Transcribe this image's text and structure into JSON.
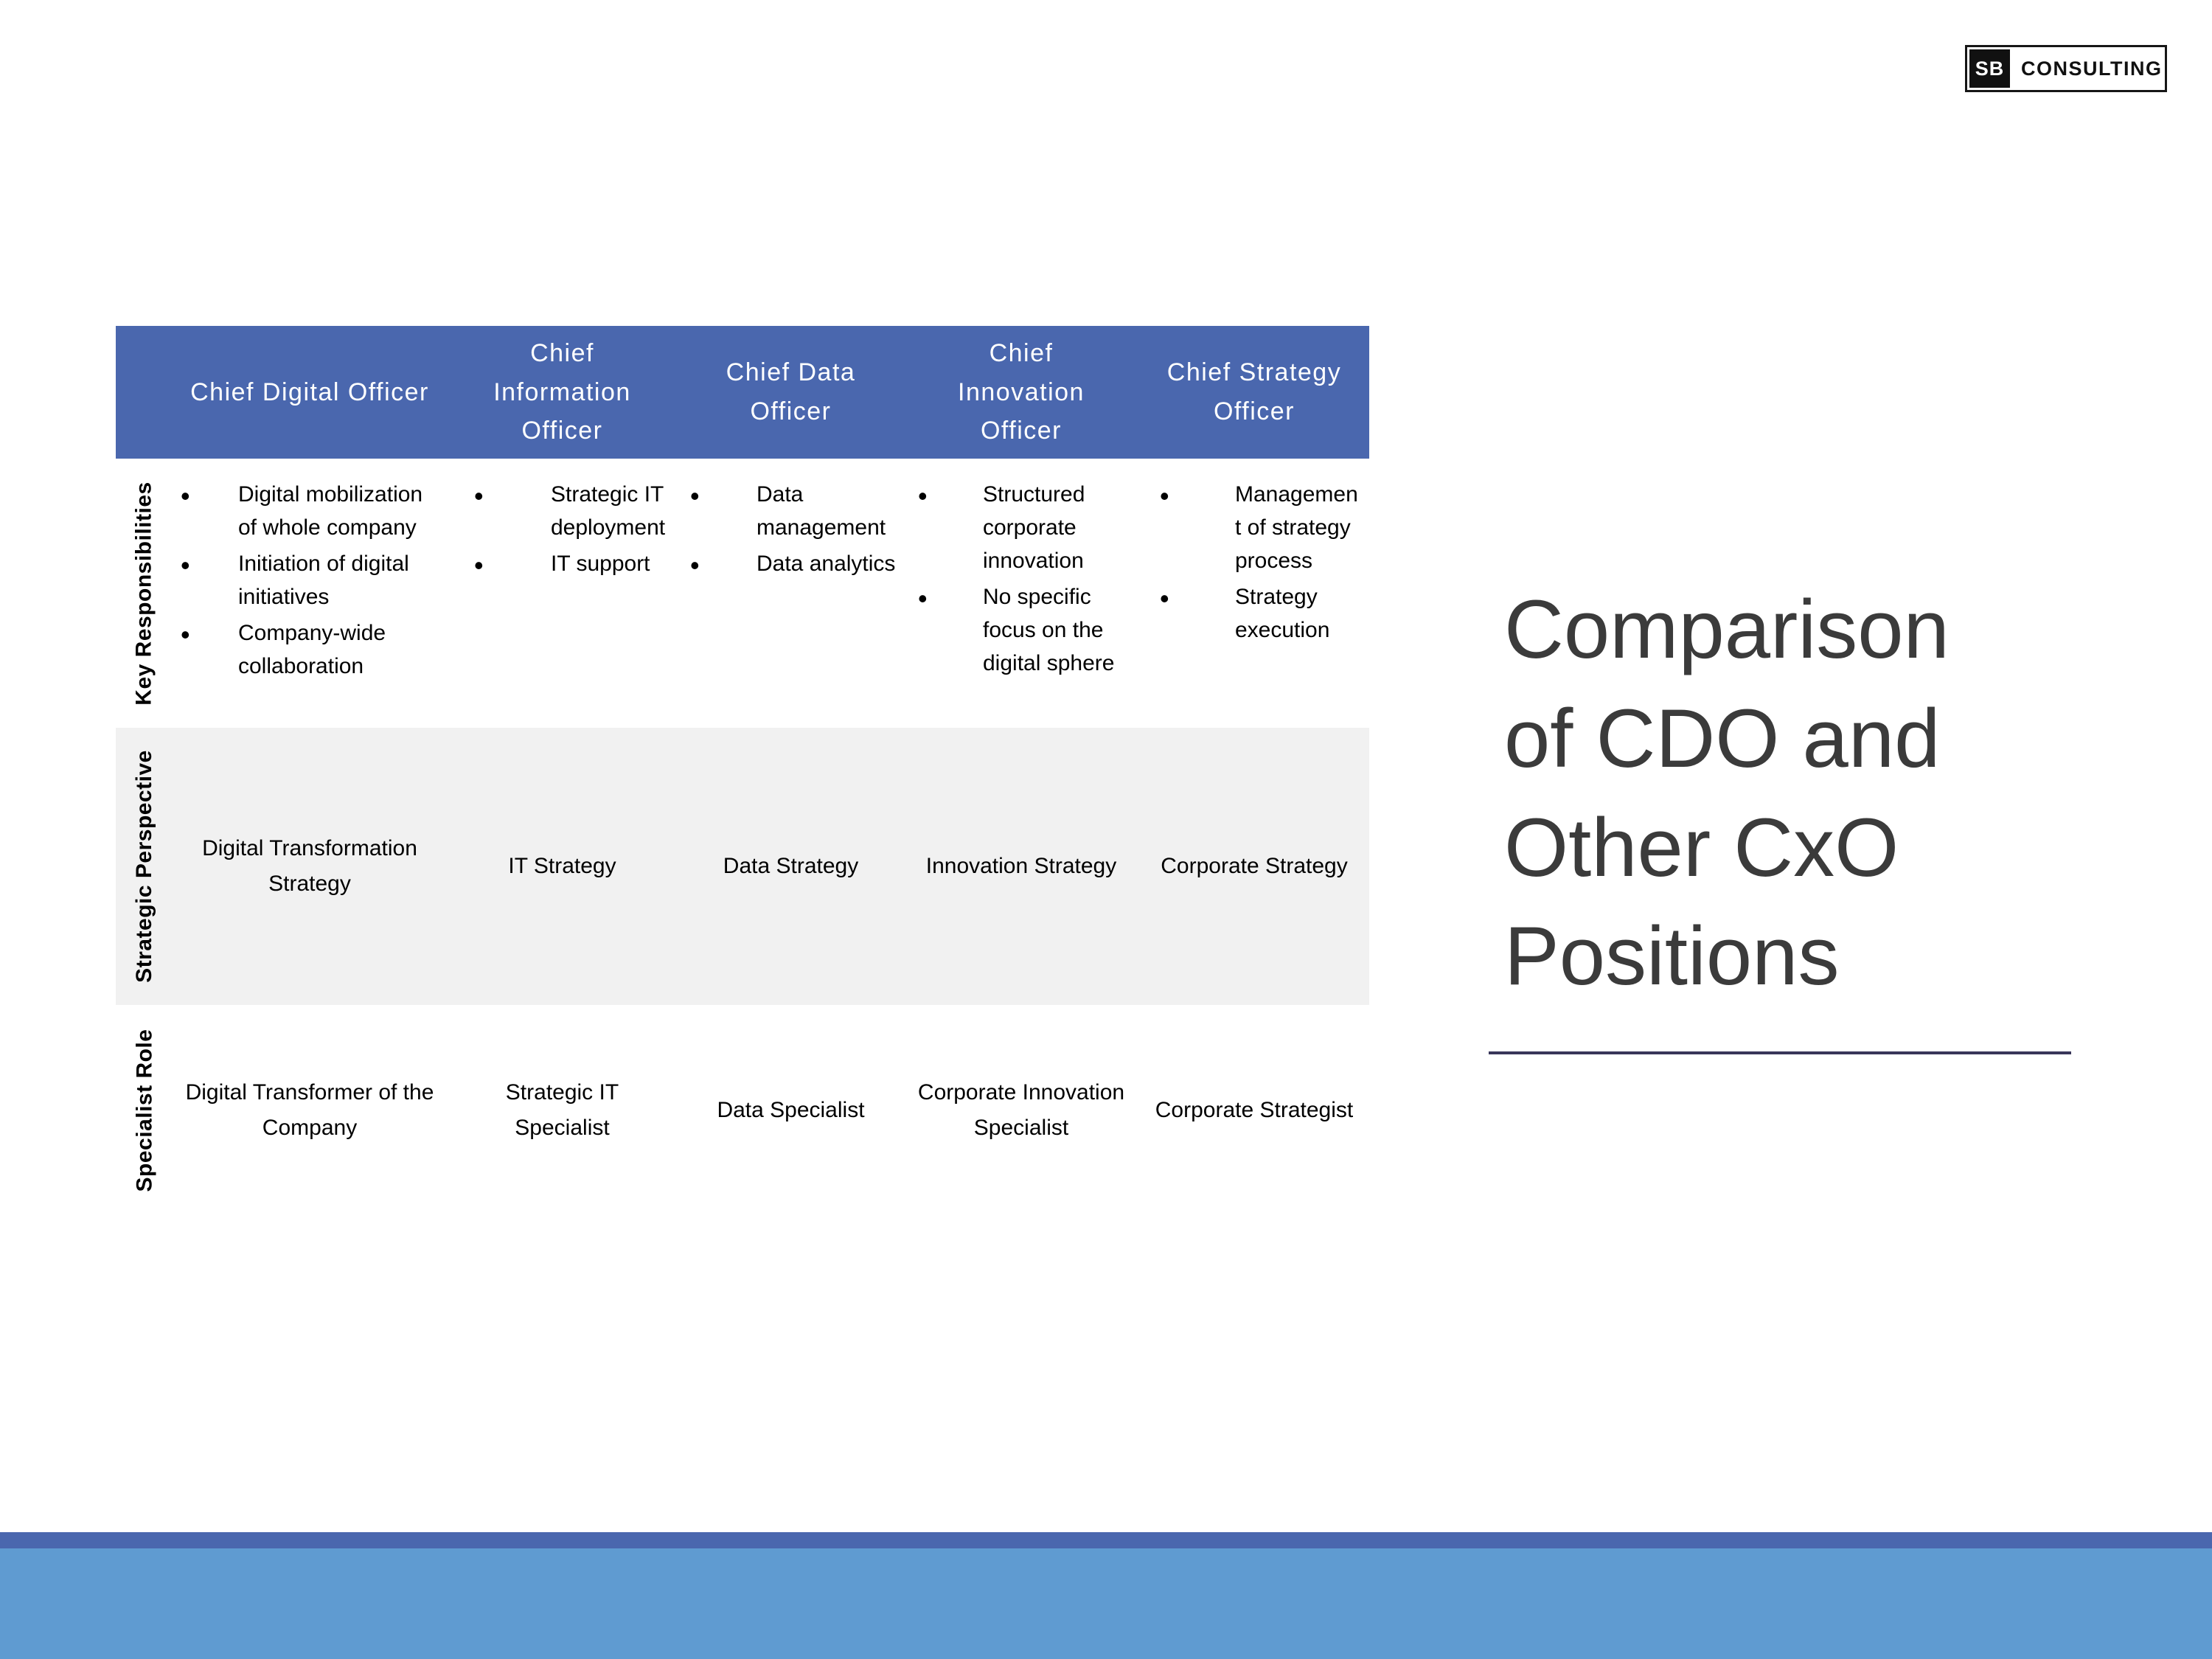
{
  "logo": {
    "mark": "SB",
    "name": "CONSULTING"
  },
  "title": {
    "text": "Comparison of CDO and Other CxO Positions"
  },
  "table": {
    "columns": [
      "Chief Digital Officer",
      "Chief Information Officer",
      "Chief Data Officer",
      "Chief Innovation Officer",
      "Chief Strategy Officer"
    ],
    "rows": [
      {
        "label": "Key Responsibilities",
        "type": "bullet-list",
        "cells": [
          [
            "Digital mobilization of whole company",
            "Initiation of digital initiatives",
            "Company-wide collaboration"
          ],
          [
            "Strategic IT deployment",
            "IT support"
          ],
          [
            "Data management",
            "Data analytics"
          ],
          [
            "Structured corporate innovation",
            "No specific focus on the digital sphere"
          ],
          [
            "Management of strategy process",
            "Strategy execution"
          ]
        ]
      },
      {
        "label": "Strategic Perspective",
        "type": "text",
        "cells": [
          "Digital Transformation Strategy",
          "IT Strategy",
          "Data Strategy",
          "Innovation Strategy",
          "Corporate Strategy"
        ]
      },
      {
        "label": "Specialist Role",
        "type": "text",
        "cells": [
          "Digital Transformer of the Company",
          "Strategic IT Specialist",
          "Data Specialist",
          "Corporate Innovation Specialist",
          "Corporate Strategist"
        ]
      }
    ]
  },
  "colors": {
    "header_blue": "#4A67AE",
    "alt_row_gray": "#F1F1F1",
    "bottom_bar_dark": "#4A67AE",
    "bottom_bar_light": "#5F9BD1",
    "title_gray": "#3B3B3B",
    "title_rule_navy": "#38365A",
    "background": "#FFFFFF"
  }
}
